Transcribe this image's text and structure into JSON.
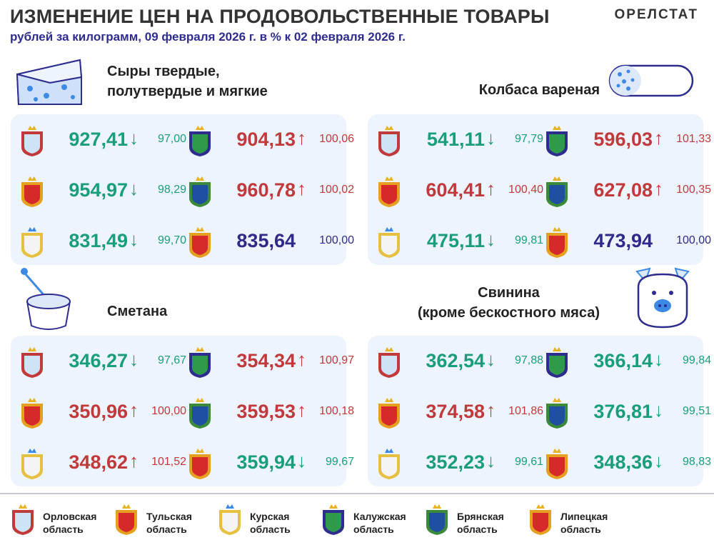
{
  "header": {
    "title": "ИЗМЕНЕНИЕ ЦЕН НА ПРОДОВОЛЬСТВЕННЫЕ ТОВАРЫ",
    "subtitle": "рублей за килограмм, 09 февраля 2026 г. в % к 02 февраля 2026 г.",
    "brand": "ОРЕЛСТАТ"
  },
  "colors": {
    "down": "#1a9e7a",
    "up": "#c0393b",
    "same": "#2e2a8a",
    "panel": "#edf4fd"
  },
  "arrows": {
    "down": "↓",
    "up": "↑",
    "same": ""
  },
  "regions": [
    {
      "id": "orel",
      "name1": "Орловская",
      "name2": "область"
    },
    {
      "id": "tula",
      "name1": "Тульская",
      "name2": "область"
    },
    {
      "id": "kursk",
      "name1": "Курская",
      "name2": "область"
    },
    {
      "id": "kaluga",
      "name1": "Калужская",
      "name2": "область"
    },
    {
      "id": "bryansk",
      "name1": "Брянская",
      "name2": "область"
    },
    {
      "id": "lipetsk",
      "name1": "Липецкая",
      "name2": "область"
    }
  ],
  "products": [
    {
      "title1": "Сыры твердые,",
      "title2": "полутвердые и мягкие",
      "items": [
        {
          "region": "orel",
          "value": "927,41",
          "pct": "97,00",
          "trend": "down"
        },
        {
          "region": "tula",
          "value": "954,97",
          "pct": "98,29",
          "trend": "down"
        },
        {
          "region": "kursk",
          "value": "831,49",
          "pct": "99,70",
          "trend": "down"
        },
        {
          "region": "kaluga",
          "value": "904,13",
          "pct": "100,06",
          "trend": "up"
        },
        {
          "region": "bryansk",
          "value": "960,78",
          "pct": "100,02",
          "trend": "up"
        },
        {
          "region": "lipetsk",
          "value": "835,64",
          "pct": "100,00",
          "trend": "same"
        }
      ]
    },
    {
      "title1": "Колбаса вареная",
      "title2": "",
      "items": [
        {
          "region": "orel",
          "value": "541,11",
          "pct": "97,79",
          "trend": "down"
        },
        {
          "region": "tula",
          "value": "604,41",
          "pct": "100,40",
          "trend": "up"
        },
        {
          "region": "kursk",
          "value": "475,11",
          "pct": "99,81",
          "trend": "down"
        },
        {
          "region": "kaluga",
          "value": "596,03",
          "pct": "101,33",
          "trend": "up"
        },
        {
          "region": "bryansk",
          "value": "627,08",
          "pct": "100,35",
          "trend": "up"
        },
        {
          "region": "lipetsk",
          "value": "473,94",
          "pct": "100,00",
          "trend": "same"
        }
      ]
    },
    {
      "title1": "Сметана",
      "title2": "",
      "items": [
        {
          "region": "orel",
          "value": "346,27",
          "pct": "97,67",
          "trend": "down"
        },
        {
          "region": "tula",
          "value": "350,96",
          "pct": "100,00",
          "trend": "up"
        },
        {
          "region": "kursk",
          "value": "348,62",
          "pct": "101,52",
          "trend": "up"
        },
        {
          "region": "kaluga",
          "value": "354,34",
          "pct": "100,97",
          "trend": "up"
        },
        {
          "region": "bryansk",
          "value": "359,53",
          "pct": "100,18",
          "trend": "up"
        },
        {
          "region": "lipetsk",
          "value": "359,94",
          "pct": "99,67",
          "trend": "down"
        }
      ]
    },
    {
      "title1": "Свинина",
      "title2": "(кроме бескостного мяса)",
      "items": [
        {
          "region": "orel",
          "value": "362,54",
          "pct": "97,88",
          "trend": "down"
        },
        {
          "region": "tula",
          "value": "374,58",
          "pct": "101,86",
          "trend": "up"
        },
        {
          "region": "kursk",
          "value": "352,23",
          "pct": "99,61",
          "trend": "down"
        },
        {
          "region": "kaluga",
          "value": "366,14",
          "pct": "99,84",
          "trend": "down"
        },
        {
          "region": "bryansk",
          "value": "376,81",
          "pct": "99,51",
          "trend": "down"
        },
        {
          "region": "lipetsk",
          "value": "348,36",
          "pct": "98,83",
          "trend": "down"
        }
      ]
    }
  ]
}
